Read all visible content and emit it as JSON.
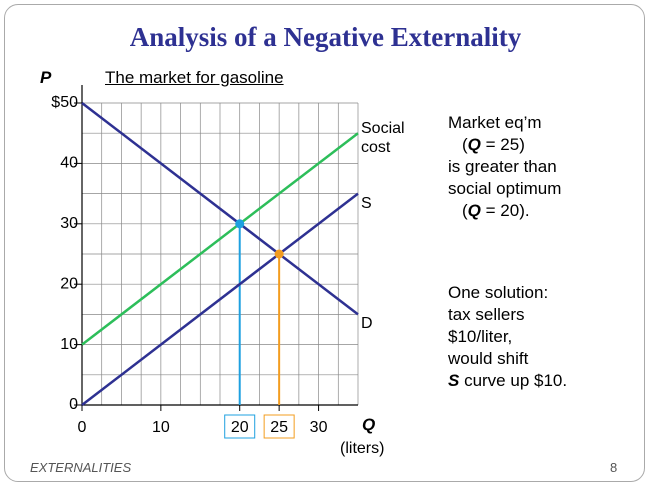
{
  "title": "Analysis of a Negative Externality",
  "chart_data": {
    "type": "line",
    "subtitle": "The market for gasoline",
    "y_label": "P",
    "x_label": "Q",
    "x_unit": "(liters)",
    "x": [
      0,
      35
    ],
    "series": [
      {
        "name": "Social cost",
        "color": "#2dbe5a",
        "values": [
          10,
          45
        ]
      },
      {
        "name": "S",
        "color": "#2e3192",
        "values": [
          0,
          35
        ]
      },
      {
        "name": "D",
        "color": "#2e3192",
        "values": [
          50,
          15
        ]
      }
    ],
    "points": [
      {
        "x": 20,
        "y": 30,
        "color": "#1ea0e0"
      },
      {
        "x": 25,
        "y": 25,
        "color": "#f39c1f"
      }
    ],
    "xlim": [
      0,
      35
    ],
    "ylim": [
      0,
      50
    ],
    "xticks": [
      0,
      10,
      20,
      25,
      30
    ],
    "yticks": [
      0,
      10,
      20,
      30,
      40,
      {
        "value": 50,
        "label": "$50"
      }
    ],
    "xgrid": [
      2.5,
      5,
      7.5,
      10,
      12.5,
      15,
      17.5,
      20,
      22.5,
      25,
      27.5,
      30,
      32.5,
      35
    ],
    "ygrid": [
      5,
      10,
      15,
      20,
      25,
      30,
      35,
      40,
      45,
      50
    ],
    "grid": true
  },
  "text": [
    [
      [
        {
          "t": "Market eq’m"
        }
      ],
      [
        {
          "t": "("
        },
        {
          "t": "Q",
          "em": true
        },
        {
          "t": " = 25)"
        }
      ],
      [
        {
          "t": "is greater than"
        }
      ],
      [
        {
          "t": "social optimum"
        }
      ],
      [
        {
          "t": "("
        },
        {
          "t": "Q",
          "em": true
        },
        {
          "t": " = 20)."
        }
      ]
    ],
    [
      [
        {
          "t": "One solution:"
        }
      ],
      [
        {
          "t": "tax sellers"
        }
      ],
      [
        {
          "t": "$10/liter,"
        }
      ],
      [
        {
          "t": "would shift"
        }
      ],
      [
        {
          "t": "S",
          "em": true
        },
        {
          "t": " curve up $10."
        }
      ]
    ]
  ],
  "footer": "EXTERNALITIES",
  "page": "8"
}
